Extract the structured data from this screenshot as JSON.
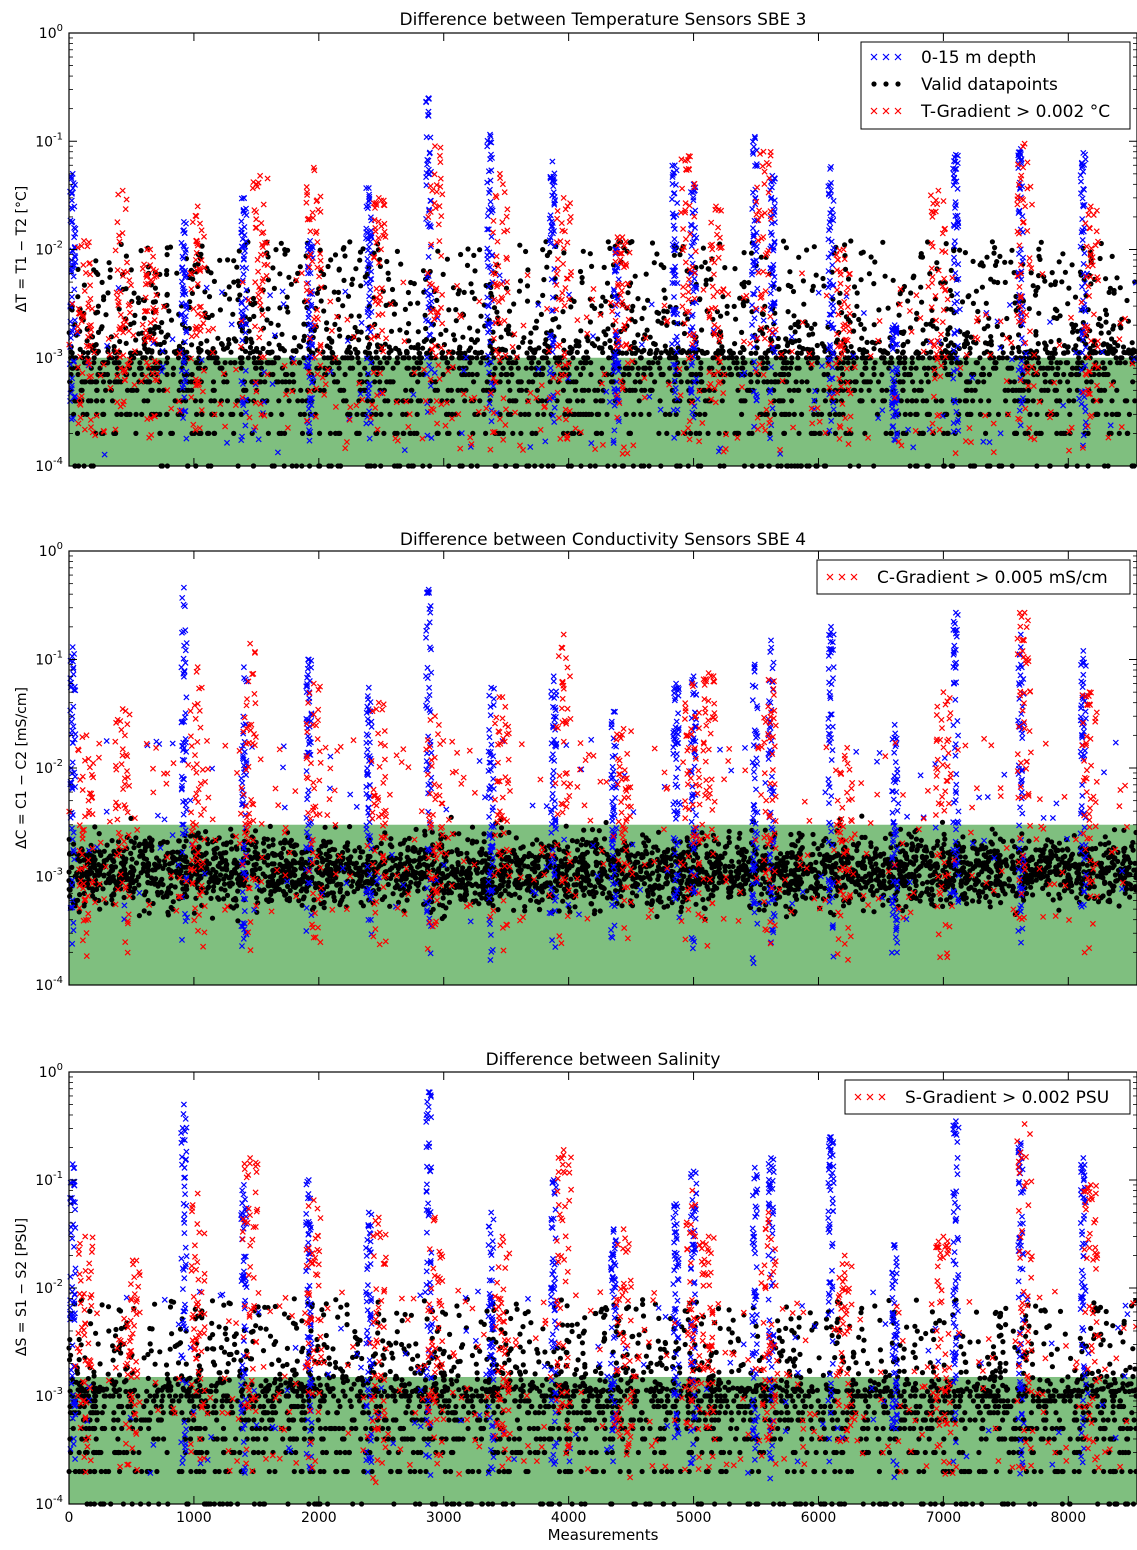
{
  "colors": {
    "band": "#7fbf7f",
    "depth": "#0000ff",
    "valid": "#000000",
    "gradient": "#ff0000"
  },
  "xlabel": "Measurements",
  "chart_data": [
    {
      "type": "scatter",
      "title": "Difference between Temperature Sensors SBE 3",
      "ylabel": "ΔT = T1 − T2 [°C]",
      "yscale": "log",
      "ylim": [
        0.0001,
        1
      ],
      "xlim": [
        0,
        8550
      ],
      "y_tick_labels": [
        {
          "base": "10",
          "exp": "-4"
        },
        {
          "base": "10",
          "exp": "-3"
        },
        {
          "base": "10",
          "exp": "-2"
        },
        {
          "base": "10",
          "exp": "-1"
        },
        {
          "base": "10",
          "exp": "0"
        }
      ],
      "x_tick_labels_shown": false,
      "band": {
        "y_from": 0.0001,
        "y_to": 0.001
      },
      "legend": {
        "position": "upper right",
        "entries": [
          "0-15 m depth",
          "Valid datapoints",
          "T-Gradient > 0.002 °C"
        ]
      },
      "valid_cloud": {
        "ymax": 0.012,
        "quantized_levels": [
          0.0001,
          0.0002,
          0.0003,
          0.0004,
          0.0005,
          0.0006,
          0.0007,
          0.0008,
          0.0009,
          0.001
        ]
      },
      "series": [
        {
          "name": "0-15 m depth",
          "marker": "x",
          "peaks": [
            [
              30,
              0.05
            ],
            [
              920,
              0.018
            ],
            [
              1400,
              0.03
            ],
            [
              1930,
              0.012
            ],
            [
              2400,
              0.037
            ],
            [
              2880,
              0.25
            ],
            [
              3370,
              0.115
            ],
            [
              3870,
              0.065
            ],
            [
              4380,
              0.01
            ],
            [
              4850,
              0.06
            ],
            [
              5000,
              0.04
            ],
            [
              5490,
              0.11
            ],
            [
              5630,
              0.048
            ],
            [
              6100,
              0.058
            ],
            [
              6610,
              0.002
            ],
            [
              7100,
              0.075
            ],
            [
              7620,
              0.085
            ],
            [
              8120,
              0.078
            ]
          ]
        },
        {
          "name": "T-Gradient > 0.002 °C",
          "marker": "x",
          "peaks": [
            [
              120,
              0.012
            ],
            [
              430,
              0.035
            ],
            [
              650,
              0.01
            ],
            [
              1030,
              0.025
            ],
            [
              1530,
              0.048
            ],
            [
              1960,
              0.057
            ],
            [
              2480,
              0.03
            ],
            [
              2930,
              0.09
            ],
            [
              3450,
              0.05
            ],
            [
              3960,
              0.03
            ],
            [
              4430,
              0.013
            ],
            [
              4960,
              0.073
            ],
            [
              5180,
              0.025
            ],
            [
              5560,
              0.08
            ],
            [
              6200,
              0.01
            ],
            [
              6960,
              0.035
            ],
            [
              7650,
              0.095
            ],
            [
              8180,
              0.025
            ]
          ]
        }
      ]
    },
    {
      "type": "scatter",
      "title": "Difference between Conductivity Sensors SBE 4",
      "ylabel": "ΔC = C1 − C2 [mS/cm]",
      "yscale": "log",
      "ylim": [
        0.0001,
        1
      ],
      "xlim": [
        0,
        8550
      ],
      "y_tick_labels": [
        {
          "base": "10",
          "exp": "-4"
        },
        {
          "base": "10",
          "exp": "-3"
        },
        {
          "base": "10",
          "exp": "-2"
        },
        {
          "base": "10",
          "exp": "-1"
        },
        {
          "base": "10",
          "exp": "0"
        }
      ],
      "x_tick_labels_shown": false,
      "band": {
        "y_from": 0.0001,
        "y_to": 0.003
      },
      "legend": {
        "position": "upper right",
        "entries": [
          "C-Gradient > 0.005 mS/cm"
        ]
      },
      "valid_cloud": {
        "ymax": 0.01,
        "quantized_levels": []
      },
      "series": [
        {
          "name": "0-15 m depth",
          "marker": "x",
          "peaks": [
            [
              30,
              0.13
            ],
            [
              920,
              0.46
            ],
            [
              1400,
              0.085
            ],
            [
              1920,
              0.1
            ],
            [
              2400,
              0.055
            ],
            [
              2880,
              0.44
            ],
            [
              3380,
              0.055
            ],
            [
              3880,
              0.07
            ],
            [
              4360,
              0.033
            ],
            [
              4860,
              0.06
            ],
            [
              5000,
              0.07
            ],
            [
              5490,
              0.09
            ],
            [
              5620,
              0.15
            ],
            [
              6100,
              0.2
            ],
            [
              6610,
              0.025
            ],
            [
              7100,
              0.27
            ],
            [
              7620,
              0.17
            ],
            [
              8120,
              0.12
            ]
          ]
        },
        {
          "name": "C-Gradient > 0.005 mS/cm",
          "marker": "x",
          "peaks": [
            [
              140,
              0.02
            ],
            [
              430,
              0.035
            ],
            [
              1030,
              0.085
            ],
            [
              1450,
              0.14
            ],
            [
              1960,
              0.06
            ],
            [
              2480,
              0.04
            ],
            [
              2930,
              0.03
            ],
            [
              3470,
              0.045
            ],
            [
              3960,
              0.17
            ],
            [
              4440,
              0.023
            ],
            [
              4990,
              0.06
            ],
            [
              5120,
              0.075
            ],
            [
              5600,
              0.065
            ],
            [
              6210,
              0.013
            ],
            [
              7000,
              0.05
            ],
            [
              7650,
              0.27
            ],
            [
              8170,
              0.05
            ]
          ]
        }
      ]
    },
    {
      "type": "scatter",
      "title": "Difference between Salinity",
      "ylabel": "ΔS = S1 − S2 [PSU]",
      "yscale": "log",
      "ylim": [
        0.0001,
        1
      ],
      "xlim": [
        0,
        8550
      ],
      "y_tick_labels": [
        {
          "base": "10",
          "exp": "-4"
        },
        {
          "base": "10",
          "exp": "-3"
        },
        {
          "base": "10",
          "exp": "-2"
        },
        {
          "base": "10",
          "exp": "-1"
        },
        {
          "base": "10",
          "exp": "0"
        }
      ],
      "x_tick_labels": [
        "0",
        "1000",
        "2000",
        "3000",
        "4000",
        "5000",
        "6000",
        "7000",
        "8000"
      ],
      "x_tick_labels_shown": true,
      "band": {
        "y_from": 0.0001,
        "y_to": 0.0015
      },
      "legend": {
        "position": "upper right",
        "entries": [
          "S-Gradient > 0.002 PSU"
        ]
      },
      "valid_cloud": {
        "ymax": 0.008,
        "quantized_levels": [
          0.0001,
          0.0002,
          0.0003,
          0.0004,
          0.0005,
          0.0006,
          0.0007,
          0.0008,
          0.0009,
          0.001
        ]
      },
      "series": [
        {
          "name": "0-15 m depth",
          "marker": "x",
          "peaks": [
            [
              30,
              0.14
            ],
            [
              920,
              0.5
            ],
            [
              1400,
              0.09
            ],
            [
              1920,
              0.1
            ],
            [
              2400,
              0.05
            ],
            [
              2880,
              0.65
            ],
            [
              3380,
              0.05
            ],
            [
              3880,
              0.1
            ],
            [
              4360,
              0.035
            ],
            [
              4860,
              0.06
            ],
            [
              5000,
              0.12
            ],
            [
              5490,
              0.13
            ],
            [
              5620,
              0.16
            ],
            [
              6100,
              0.25
            ],
            [
              6610,
              0.025
            ],
            [
              7100,
              0.35
            ],
            [
              7620,
              0.22
            ],
            [
              8120,
              0.16
            ]
          ]
        },
        {
          "name": "S-Gradient > 0.002 PSU",
          "marker": "x",
          "peaks": [
            [
              130,
              0.03
            ],
            [
              510,
              0.018
            ],
            [
              1030,
              0.075
            ],
            [
              1450,
              0.16
            ],
            [
              1960,
              0.065
            ],
            [
              2480,
              0.045
            ],
            [
              2930,
              0.045
            ],
            [
              3470,
              0.03
            ],
            [
              3960,
              0.19
            ],
            [
              4440,
              0.035
            ],
            [
              4990,
              0.08
            ],
            [
              5120,
              0.03
            ],
            [
              5600,
              0.05
            ],
            [
              6210,
              0.02
            ],
            [
              7000,
              0.03
            ],
            [
              7650,
              0.33
            ],
            [
              8180,
              0.09
            ]
          ]
        }
      ]
    }
  ]
}
